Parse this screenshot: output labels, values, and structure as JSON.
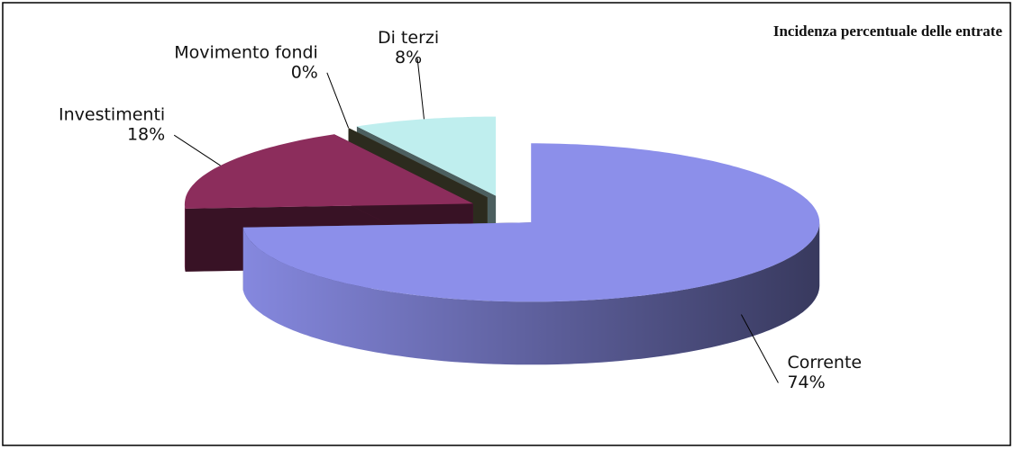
{
  "chart_data": {
    "type": "pie",
    "title": "Incidenza percentuale delle entrate",
    "categories": [
      "Corrente",
      "Investimenti",
      "Movimento fondi",
      "Di terzi"
    ],
    "values": [
      74,
      18,
      0,
      8
    ],
    "value_labels": [
      "74%",
      "18%",
      "0%",
      "8%"
    ],
    "colors": [
      "#8c8fea",
      "#8c2d5c",
      "#6e6c4c",
      "#bfeeee"
    ]
  }
}
